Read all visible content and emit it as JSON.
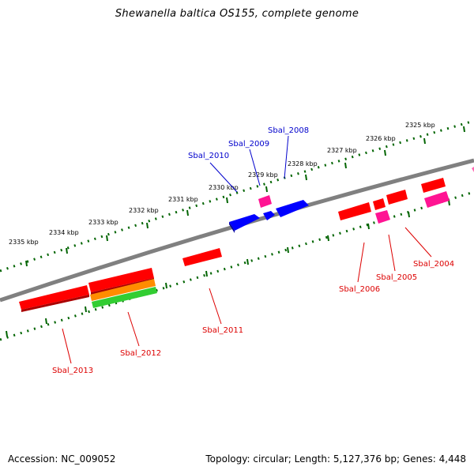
{
  "title": "Shewanella baltica OS155, complete genome",
  "footer": {
    "accession": "Accession: NC_009052",
    "topology": "Topology: circular; Length: 5,127,376 bp; Genes: 4,448"
  },
  "colors": {
    "backbone": "#808080",
    "tick": "#006400",
    "gene_red": "#ff0000",
    "gene_pink": "#ff1493",
    "gene_blue": "#0000ff",
    "gene_orange": "#ff8c00",
    "gene_green": "#32cd32",
    "label_red": "#dd0000",
    "label_blue": "#0000cc"
  },
  "kbp_labels": [
    "2325 kbp",
    "2326 kbp",
    "2327 kbp",
    "2328 kbp",
    "2329 kbp",
    "2330 kbp",
    "2331 kbp",
    "2332 kbp",
    "2333 kbp",
    "2334 kbp",
    "2335 kbp"
  ],
  "gene_labels_top": [
    "Sbal_2008",
    "Sbal_2009",
    "Sbal_2010"
  ],
  "gene_labels_bottom": [
    "Sbal_2004",
    "Sbal_2005",
    "Sbal_2006",
    "Sbal_2011",
    "Sbal_2012",
    "Sbal_2013"
  ]
}
